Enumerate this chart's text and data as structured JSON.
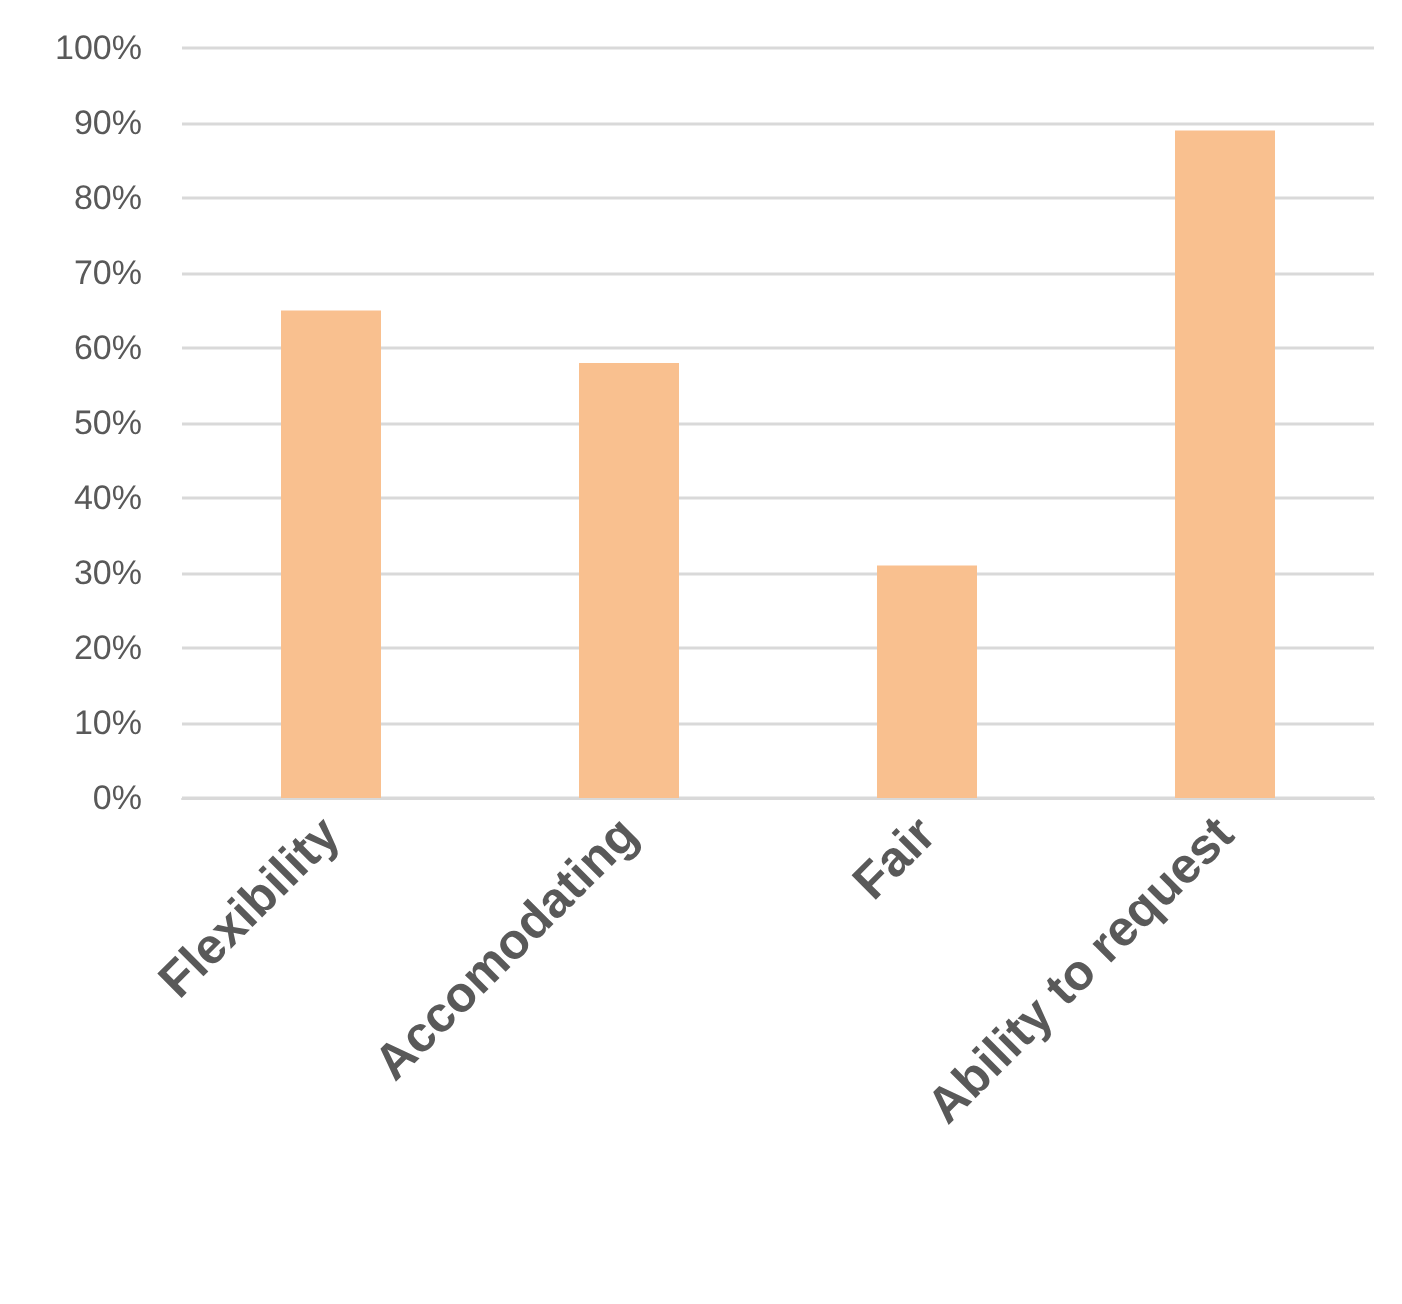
{
  "chart_data": {
    "type": "bar",
    "categories": [
      "Flexibility",
      "Accomodating",
      "Fair",
      "Ability to request"
    ],
    "values": [
      65,
      58,
      31,
      89
    ],
    "color": "#f9c08f",
    "ylim": [
      0,
      100
    ],
    "yticks": [
      {
        "value": 0,
        "label": "0%"
      },
      {
        "value": 10,
        "label": "10%"
      },
      {
        "value": 20,
        "label": "20%"
      },
      {
        "value": 30,
        "label": "30%"
      },
      {
        "value": 40,
        "label": "40%"
      },
      {
        "value": 50,
        "label": "50%"
      },
      {
        "value": 60,
        "label": "60%"
      },
      {
        "value": 70,
        "label": "70%"
      },
      {
        "value": 80,
        "label": "80%"
      },
      {
        "value": 90,
        "label": "90%"
      },
      {
        "value": 100,
        "label": "100%"
      }
    ],
    "grid": "y"
  }
}
